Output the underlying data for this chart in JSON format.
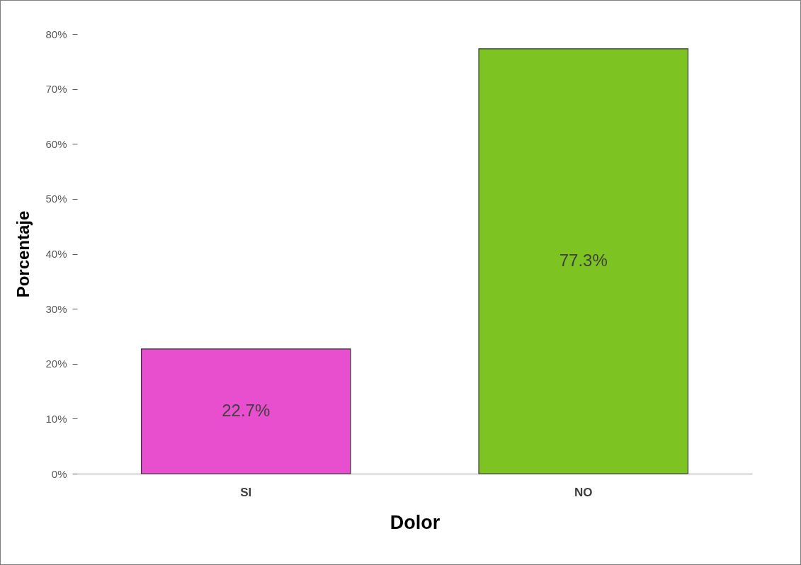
{
  "chart_data": {
    "type": "bar",
    "xlabel": "Dolor",
    "ylabel": "Porcentaje",
    "categories": [
      "SI",
      "NO"
    ],
    "values": [
      22.7,
      77.3
    ],
    "colors": [
      "#e84fcf",
      "#7dc423"
    ],
    "value_labels": [
      "22.7%",
      "77.3%"
    ],
    "ylim": [
      0,
      80
    ],
    "yticks": [
      {
        "value": 0,
        "label": "0%"
      },
      {
        "value": 10,
        "label": "10%"
      },
      {
        "value": 20,
        "label": "20%"
      },
      {
        "value": 30,
        "label": "30%"
      },
      {
        "value": 40,
        "label": "40%"
      },
      {
        "value": 50,
        "label": "50%"
      },
      {
        "value": 60,
        "label": "60%"
      },
      {
        "value": 70,
        "label": "70%"
      },
      {
        "value": 80,
        "label": "80%"
      }
    ]
  }
}
